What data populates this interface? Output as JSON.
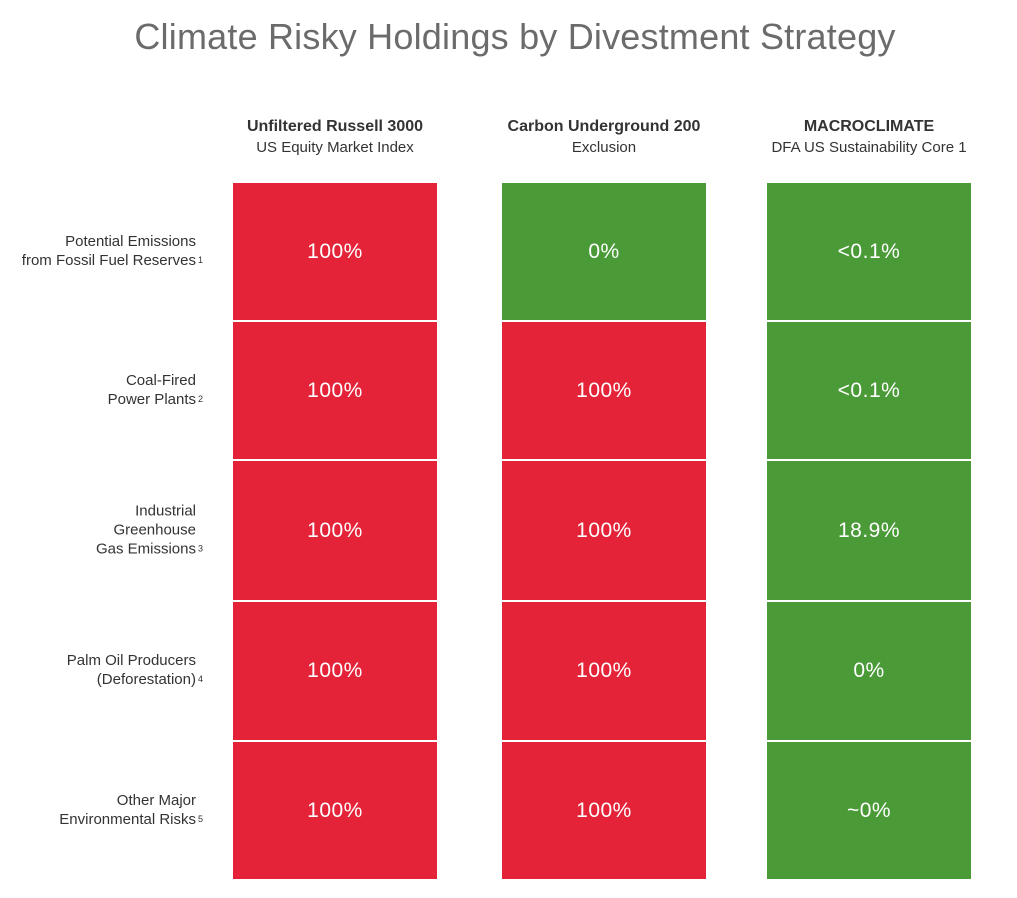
{
  "colors": {
    "risk_red": "#e42238",
    "safe_green": "#4a9a37"
  },
  "chart_data": {
    "type": "table",
    "title": "Climate Risky Holdings by Divestment Strategy",
    "columns": [
      {
        "name": "Unfiltered Russell 3000",
        "subtitle": "US Equity Market Index"
      },
      {
        "name": "Carbon Underground 200",
        "subtitle": "Exclusion"
      },
      {
        "name": "MACROCLIMATE",
        "subtitle": "DFA US Sustainability Core 1"
      }
    ],
    "rows": [
      {
        "label_lines": [
          "Potential Emissions",
          "from Fossil Fuel Reserves"
        ],
        "footnote": "1",
        "values": [
          "100%",
          "0%",
          "<0.1%"
        ],
        "status": [
          "red",
          "green",
          "green"
        ]
      },
      {
        "label_lines": [
          "Coal-Fired",
          "Power Plants"
        ],
        "footnote": "2",
        "values": [
          "100%",
          "100%",
          "<0.1%"
        ],
        "status": [
          "red",
          "red",
          "green"
        ]
      },
      {
        "label_lines": [
          "Industrial",
          "Greenhouse",
          "Gas Emissions"
        ],
        "footnote": "3",
        "values": [
          "100%",
          "100%",
          "18.9%"
        ],
        "status": [
          "red",
          "red",
          "green"
        ]
      },
      {
        "label_lines": [
          "Palm Oil Producers",
          "(Deforestation)"
        ],
        "footnote": "4",
        "values": [
          "100%",
          "100%",
          "0%"
        ],
        "status": [
          "red",
          "red",
          "green"
        ]
      },
      {
        "label_lines": [
          "Other Major",
          "Environmental Risks"
        ],
        "footnote": "5",
        "values": [
          "100%",
          "100%",
          "~0%"
        ],
        "status": [
          "red",
          "red",
          "green"
        ]
      }
    ]
  }
}
